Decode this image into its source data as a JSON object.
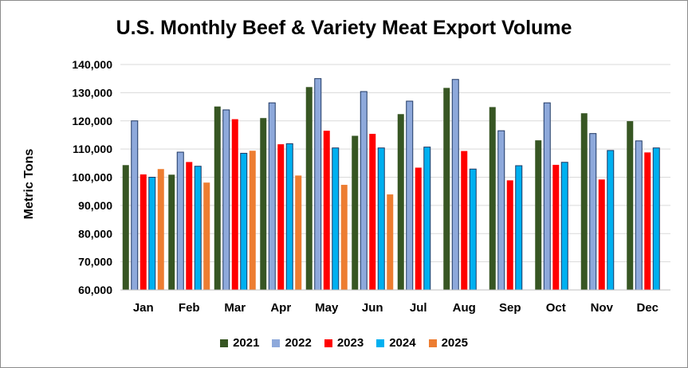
{
  "chart_data": {
    "type": "bar",
    "title": "U.S. Monthly Beef & Variety Meat Export Volume",
    "xlabel": "",
    "ylabel": "Metric Tons",
    "ylim": [
      60000,
      140000
    ],
    "yticks": [
      60000,
      70000,
      80000,
      90000,
      100000,
      110000,
      120000,
      130000,
      140000
    ],
    "ytick_labels": [
      "60,000",
      "70,000",
      "80,000",
      "90,000",
      "100,000",
      "110,000",
      "120,000",
      "130,000",
      "140,000"
    ],
    "grid": true,
    "legend_position": "bottom",
    "categories": [
      "Jan",
      "Feb",
      "Mar",
      "Apr",
      "May",
      "Jun",
      "Jul",
      "Aug",
      "Sep",
      "Oct",
      "Nov",
      "Dec"
    ],
    "series": [
      {
        "name": "2021",
        "color": "#375623",
        "values": [
          104300,
          100900,
          125100,
          121000,
          132000,
          114700,
          122400,
          131700,
          124900,
          113100,
          122700,
          119900
        ]
      },
      {
        "name": "2022",
        "color": "#8EA9DB",
        "values": [
          120000,
          108900,
          123900,
          126400,
          135000,
          130400,
          127000,
          134700,
          116500,
          126400,
          115500,
          112900
        ]
      },
      {
        "name": "2023",
        "color": "#FF0000",
        "values": [
          101000,
          105400,
          120600,
          111700,
          116500,
          115400,
          103400,
          109300,
          98900,
          104400,
          99200,
          108800
        ]
      },
      {
        "name": "2024",
        "color": "#00B0F0",
        "values": [
          100000,
          103900,
          108500,
          111900,
          110400,
          110400,
          110700,
          102900,
          104100,
          105300,
          109500,
          110400
        ]
      },
      {
        "name": "2025",
        "color": "#ED7D31",
        "values": [
          102900,
          98100,
          109400,
          100600,
          97300,
          93900,
          null,
          null,
          null,
          null,
          null,
          null
        ]
      }
    ]
  }
}
